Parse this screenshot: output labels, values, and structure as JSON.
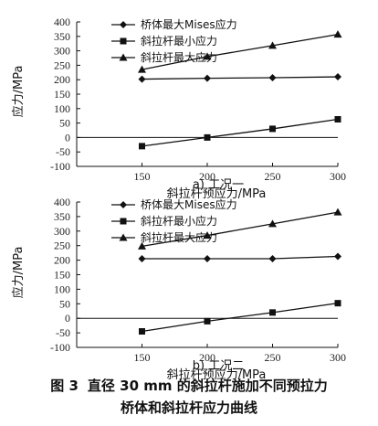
{
  "chart_data": [
    {
      "type": "line",
      "caption": "a) 工况一",
      "xlabel": "斜拉杆预应力/MPa",
      "ylabel": "应力/MPa",
      "x": [
        150,
        200,
        250,
        300
      ],
      "xlim": [
        100,
        300
      ],
      "ylim": [
        -100,
        400
      ],
      "xticks": [
        150,
        200,
        250,
        300
      ],
      "yticks": [
        -100,
        -50,
        0,
        50,
        100,
        150,
        200,
        250,
        300,
        350,
        400
      ],
      "grid": false,
      "legend_position": "top-left",
      "series": [
        {
          "name": "桥体最大Mises应力",
          "marker": "diamond",
          "values": [
            202,
            205,
            207,
            210
          ]
        },
        {
          "name": "斜拉杆最小应力",
          "marker": "square",
          "values": [
            -30,
            0,
            30,
            63
          ]
        },
        {
          "name": "斜拉杆最大应力",
          "marker": "triangle",
          "values": [
            235,
            280,
            318,
            357
          ]
        }
      ]
    },
    {
      "type": "line",
      "caption": "b) 工况二",
      "xlabel": "斜拉杆预应力/MPa",
      "ylabel": "应力/MPa",
      "x": [
        150,
        200,
        250,
        300
      ],
      "xlim": [
        100,
        300
      ],
      "ylim": [
        -100,
        400
      ],
      "xticks": [
        150,
        200,
        250,
        300
      ],
      "yticks": [
        -100,
        -50,
        0,
        50,
        100,
        150,
        200,
        250,
        300,
        350,
        400
      ],
      "grid": false,
      "legend_position": "top-left",
      "series": [
        {
          "name": "桥体最大Mises应力",
          "marker": "diamond",
          "values": [
            205,
            205,
            205,
            213
          ]
        },
        {
          "name": "斜拉杆最小应力",
          "marker": "square",
          "values": [
            -45,
            -10,
            20,
            52
          ]
        },
        {
          "name": "斜拉杆最大应力",
          "marker": "triangle",
          "values": [
            248,
            285,
            325,
            365
          ]
        }
      ]
    }
  ],
  "figure_caption": {
    "number": "图 3",
    "line1": "直径 30 mm 的斜拉杆施加不同预拉力",
    "line2": "桥体和斜拉杆应力曲线"
  }
}
